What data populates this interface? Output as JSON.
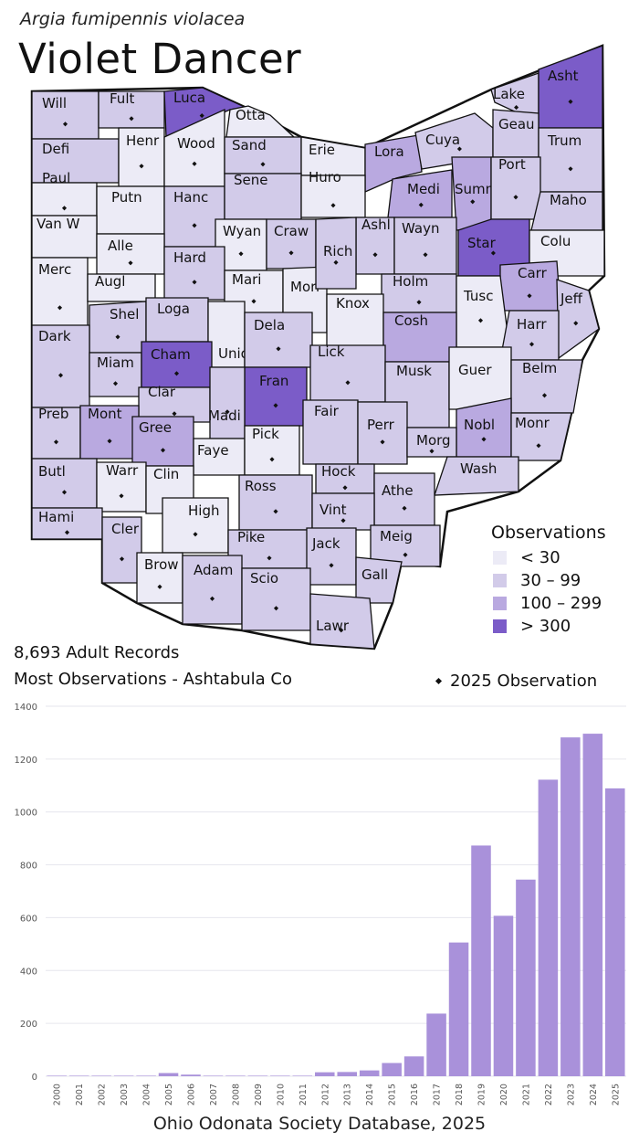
{
  "header": {
    "scientific_name": "Argia fumipennis violacea",
    "common_name": "Violet Dancer"
  },
  "colors": {
    "lt30": "#ecebf6",
    "30to99": "#d2cbe9",
    "100to299": "#b9a9e0",
    "gt300": "#7b5cc8",
    "bar": "#a991da",
    "border": "#111111"
  },
  "legend": {
    "title": "Observations",
    "items": [
      {
        "label": "< 30",
        "color": "#ecebf6"
      },
      {
        "label": "30 – 99",
        "color": "#d2cbe9"
      },
      {
        "label": "100 – 299",
        "color": "#b9a9e0"
      },
      {
        "label": "> 300",
        "color": "#7b5cc8"
      }
    ]
  },
  "summary": {
    "records": "8,693  Adult Records",
    "most": "Most Observations - Ashtabula Co",
    "obs_2025": "2025  Observation"
  },
  "map_counties": [
    {
      "name": "Will",
      "cls": "30to99",
      "dot": true
    },
    {
      "name": "Fult",
      "cls": "30to99",
      "dot": true
    },
    {
      "name": "Luca",
      "cls": "gt300",
      "dot": true
    },
    {
      "name": "Otta",
      "cls": "lt30",
      "dot": false
    },
    {
      "name": "Lake",
      "cls": "30to99",
      "dot": true
    },
    {
      "name": "Asht",
      "cls": "gt300",
      "dot": true
    },
    {
      "name": "Defi",
      "cls": "30to99",
      "dot": false
    },
    {
      "name": "Henr",
      "cls": "lt30",
      "dot": true
    },
    {
      "name": "Wood",
      "cls": "lt30",
      "dot": true
    },
    {
      "name": "Sand",
      "cls": "30to99",
      "dot": true
    },
    {
      "name": "Erie",
      "cls": "lt30",
      "dot": false
    },
    {
      "name": "Lora",
      "cls": "100to299",
      "dot": false
    },
    {
      "name": "Cuya",
      "cls": "30to99",
      "dot": true
    },
    {
      "name": "Geau",
      "cls": "30to99",
      "dot": false
    },
    {
      "name": "Trum",
      "cls": "30to99",
      "dot": true
    },
    {
      "name": "Paul",
      "cls": "lt30",
      "dot": true
    },
    {
      "name": "Putn",
      "cls": "lt30",
      "dot": false
    },
    {
      "name": "Hanc",
      "cls": "30to99",
      "dot": true
    },
    {
      "name": "Sene",
      "cls": "30to99",
      "dot": false
    },
    {
      "name": "Huro",
      "cls": "lt30",
      "dot": true
    },
    {
      "name": "Medi",
      "cls": "100to299",
      "dot": true
    },
    {
      "name": "Summ",
      "cls": "100to299",
      "dot": true
    },
    {
      "name": "Port",
      "cls": "30to99",
      "dot": true
    },
    {
      "name": "Maho",
      "cls": "30to99",
      "dot": false
    },
    {
      "name": "Van W",
      "cls": "lt30",
      "dot": false
    },
    {
      "name": "Alle",
      "cls": "lt30",
      "dot": true
    },
    {
      "name": "Wyan",
      "cls": "lt30",
      "dot": true
    },
    {
      "name": "Craw",
      "cls": "30to99",
      "dot": true
    },
    {
      "name": "Ashl",
      "cls": "30to99",
      "dot": true
    },
    {
      "name": "Wayn",
      "cls": "30to99",
      "dot": true
    },
    {
      "name": "Star",
      "cls": "gt300",
      "dot": true
    },
    {
      "name": "Colu",
      "cls": "lt30",
      "dot": false
    },
    {
      "name": "Merc",
      "cls": "lt30",
      "dot": true
    },
    {
      "name": "Augl",
      "cls": "lt30",
      "dot": false
    },
    {
      "name": "Hard",
      "cls": "30to99",
      "dot": true
    },
    {
      "name": "Mari",
      "cls": "lt30",
      "dot": true
    },
    {
      "name": "Morr",
      "cls": "lt30",
      "dot": false
    },
    {
      "name": "Rich",
      "cls": "30to99",
      "dot": true
    },
    {
      "name": "Holm",
      "cls": "30to99",
      "dot": true
    },
    {
      "name": "Carr",
      "cls": "100to299",
      "dot": true
    },
    {
      "name": "Tusc",
      "cls": "lt30",
      "dot": true
    },
    {
      "name": "Jeff",
      "cls": "30to99",
      "dot": true
    },
    {
      "name": "Shel",
      "cls": "30to99",
      "dot": true
    },
    {
      "name": "Loga",
      "cls": "30to99",
      "dot": false
    },
    {
      "name": "Unio",
      "cls": "lt30",
      "dot": false
    },
    {
      "name": "Dela",
      "cls": "30to99",
      "dot": true
    },
    {
      "name": "Knox",
      "cls": "lt30",
      "dot": false
    },
    {
      "name": "Cosh",
      "cls": "100to299",
      "dot": false
    },
    {
      "name": "Harr",
      "cls": "30to99",
      "dot": true
    },
    {
      "name": "Dark",
      "cls": "30to99",
      "dot": true
    },
    {
      "name": "Miam",
      "cls": "30to99",
      "dot": true
    },
    {
      "name": "Cham",
      "cls": "gt300",
      "dot": true
    },
    {
      "name": "Lick",
      "cls": "30to99",
      "dot": true
    },
    {
      "name": "Musk",
      "cls": "30to99",
      "dot": false
    },
    {
      "name": "Guer",
      "cls": "lt30",
      "dot": false
    },
    {
      "name": "Belm",
      "cls": "30to99",
      "dot": true
    },
    {
      "name": "Clar",
      "cls": "30to99",
      "dot": true
    },
    {
      "name": "Fran",
      "cls": "gt300",
      "dot": true
    },
    {
      "name": "Madi",
      "cls": "30to99",
      "dot": true
    },
    {
      "name": "Fair",
      "cls": "30to99",
      "dot": false
    },
    {
      "name": "Perr",
      "cls": "30to99",
      "dot": true
    },
    {
      "name": "Nobl",
      "cls": "100to299",
      "dot": true
    },
    {
      "name": "Monr",
      "cls": "30to99",
      "dot": true
    },
    {
      "name": "Preb",
      "cls": "30to99",
      "dot": true
    },
    {
      "name": "Mont",
      "cls": "100to299",
      "dot": true
    },
    {
      "name": "Gree",
      "cls": "100to299",
      "dot": true
    },
    {
      "name": "Faye",
      "cls": "lt30",
      "dot": false
    },
    {
      "name": "Pick",
      "cls": "lt30",
      "dot": true
    },
    {
      "name": "Morg",
      "cls": "30to99",
      "dot": true
    },
    {
      "name": "Wash",
      "cls": "30to99",
      "dot": false
    },
    {
      "name": "Butl",
      "cls": "30to99",
      "dot": true
    },
    {
      "name": "Warr",
      "cls": "lt30",
      "dot": true
    },
    {
      "name": "Clin",
      "cls": "lt30",
      "dot": false
    },
    {
      "name": "Hock",
      "cls": "30to99",
      "dot": true
    },
    {
      "name": "Athe",
      "cls": "30to99",
      "dot": true
    },
    {
      "name": "Ross",
      "cls": "30to99",
      "dot": true
    },
    {
      "name": "Vint",
      "cls": "30to99",
      "dot": true
    },
    {
      "name": "Hami",
      "cls": "30to99",
      "dot": true
    },
    {
      "name": "Cler",
      "cls": "30to99",
      "dot": true
    },
    {
      "name": "High",
      "cls": "lt30",
      "dot": true
    },
    {
      "name": "Meig",
      "cls": "30to99",
      "dot": true
    },
    {
      "name": "Pike",
      "cls": "30to99",
      "dot": true
    },
    {
      "name": "Jack",
      "cls": "30to99",
      "dot": true
    },
    {
      "name": "Brow",
      "cls": "lt30",
      "dot": true
    },
    {
      "name": "Adam",
      "cls": "30to99",
      "dot": true
    },
    {
      "name": "Scio",
      "cls": "30to99",
      "dot": true
    },
    {
      "name": "Gall",
      "cls": "30to99",
      "dot": false
    },
    {
      "name": "Lawr",
      "cls": "30to99",
      "dot": true
    }
  ],
  "chart_data": {
    "type": "bar",
    "title": "",
    "xlabel": "",
    "ylabel": "",
    "categories": [
      "2000",
      "2001",
      "2002",
      "2003",
      "2004",
      "2005",
      "2006",
      "2007",
      "2008",
      "2009",
      "2010",
      "2011",
      "2012",
      "2013",
      "2014",
      "2015",
      "2016",
      "2017",
      "2018",
      "2019",
      "2020",
      "2021",
      "2022",
      "2023",
      "2024",
      "2025"
    ],
    "values": [
      2,
      2,
      2,
      2,
      2,
      12,
      6,
      2,
      2,
      2,
      2,
      2,
      15,
      16,
      22,
      50,
      75,
      237,
      506,
      873,
      607,
      744,
      1122,
      1282,
      1296,
      1089
    ],
    "ylim": [
      0,
      1400
    ],
    "yticks": [
      0,
      200,
      400,
      600,
      800,
      1000,
      1200,
      1400
    ],
    "grid": true
  },
  "footer": {
    "source": "Ohio Odonata Society Database, 2025"
  }
}
